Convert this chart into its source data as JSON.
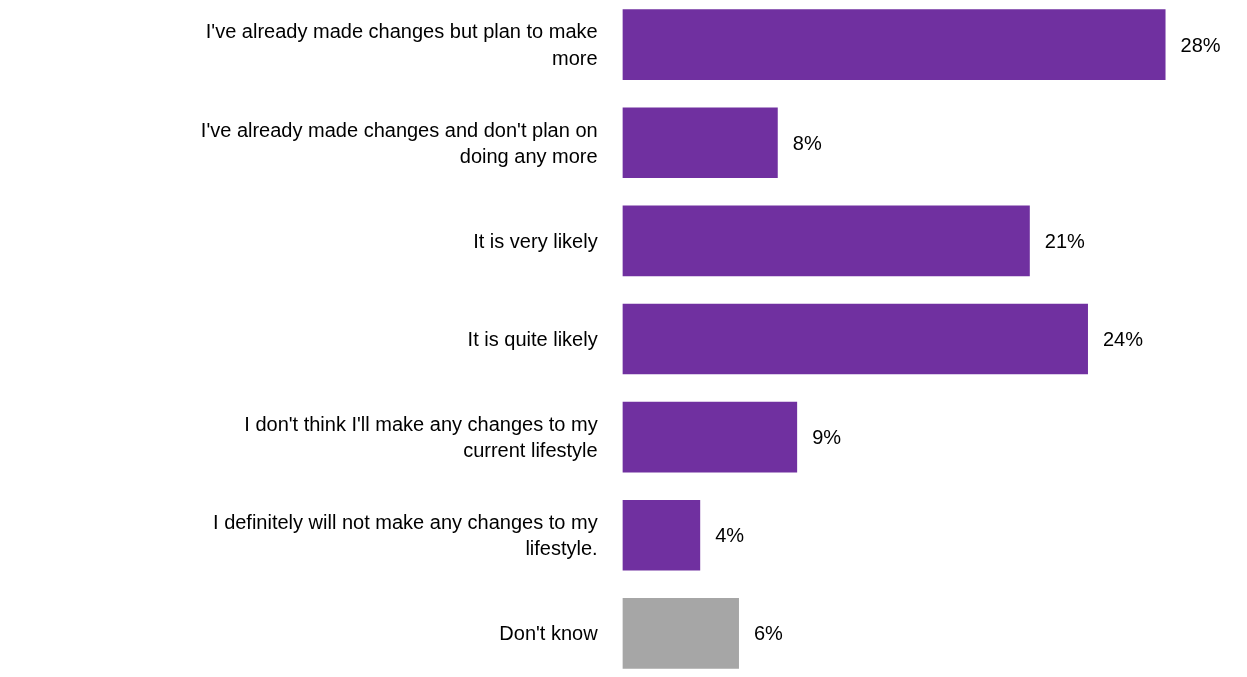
{
  "chart_data": {
    "type": "bar",
    "orientation": "horizontal",
    "categories": [
      "I've already made changes but plan to make more",
      "I've already made changes and don't plan on doing any more",
      "It is very likely",
      "It is quite likely",
      "I don't think I'll make any changes to my current lifestyle",
      "I definitely will not make any changes to my lifestyle.",
      "Don't know"
    ],
    "values": [
      28,
      8,
      21,
      24,
      9,
      4,
      6
    ],
    "colors": [
      "#7030a0",
      "#7030a0",
      "#7030a0",
      "#7030a0",
      "#7030a0",
      "#7030a0",
      "#a6a6a6"
    ],
    "value_labels": [
      "28%",
      "8%",
      "21%",
      "24%",
      "9%",
      "4%",
      "6%"
    ],
    "grid": false
  }
}
